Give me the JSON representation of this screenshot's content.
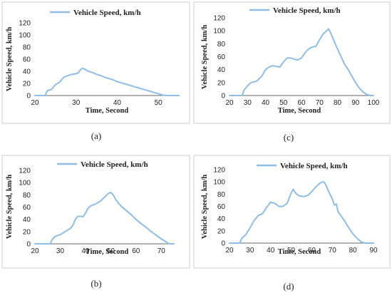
{
  "chart_data": [
    {
      "panel": "(a)",
      "type": "line",
      "legend": "Vehicle Speed, km/h",
      "legend_position": "top-center",
      "xlabel": "Time, Second",
      "ylabel": "Vehicle Speed, km/h",
      "xlim": [
        20,
        55
      ],
      "ylim": [
        0,
        120
      ],
      "xticks": [
        20,
        30,
        40,
        50
      ],
      "yticks": [
        0,
        20,
        40,
        60,
        80,
        100,
        120
      ],
      "grid": false,
      "series": [
        {
          "name": "Vehicle Speed, km/h",
          "color": "#8fbde6",
          "x": [
            20,
            22.5,
            23,
            24,
            24.5,
            25,
            26,
            27,
            28,
            29,
            30,
            30.5,
            31,
            31.5,
            32,
            33,
            34,
            35,
            36,
            37,
            38,
            39,
            40,
            41,
            42,
            43,
            44,
            45,
            46,
            47,
            48,
            49,
            50,
            51,
            52,
            53,
            55
          ],
          "y": [
            0,
            0,
            8,
            10,
            14,
            18,
            22,
            30,
            33,
            35,
            36,
            37,
            42,
            45,
            44,
            40,
            38,
            35,
            33,
            30,
            28,
            26,
            23,
            21,
            19,
            17,
            15,
            13,
            11,
            9,
            7,
            5,
            3,
            1,
            0,
            0,
            0
          ]
        }
      ]
    },
    {
      "panel": "(c)",
      "type": "line",
      "legend": "Vehicle Speed, km/h",
      "legend_position": "top-center",
      "xlabel": "Time, Second",
      "ylabel": "Vehicle Speed, km/h",
      "xlim": [
        20,
        100
      ],
      "ylim": [
        0,
        120
      ],
      "xticks": [
        20,
        30,
        40,
        50,
        60,
        70,
        80,
        90,
        100
      ],
      "yticks": [
        0,
        20,
        40,
        60,
        80,
        100,
        120
      ],
      "grid": false,
      "series": [
        {
          "name": "Vehicle Speed, km/h",
          "color": "#8fbde6",
          "x": [
            20,
            27,
            28,
            30,
            32,
            35,
            38,
            40,
            42,
            44,
            46,
            48,
            50,
            52,
            54,
            56,
            58,
            60,
            62,
            64,
            66,
            68,
            70,
            72,
            74,
            75,
            76,
            78,
            80,
            82,
            84,
            86,
            88,
            90,
            92,
            94,
            96,
            98,
            100
          ],
          "y": [
            0,
            0,
            8,
            15,
            20,
            22,
            30,
            40,
            44,
            46,
            45,
            44,
            52,
            58,
            58,
            56,
            55,
            58,
            66,
            72,
            75,
            76,
            86,
            95,
            100,
            103,
            98,
            85,
            72,
            60,
            48,
            40,
            30,
            20,
            12,
            6,
            2,
            0,
            0
          ]
        }
      ]
    },
    {
      "panel": "(b)",
      "type": "line",
      "legend": "Vehicle Speed, km/h",
      "legend_position": "top-center",
      "xlabel": "Time, Second",
      "ylabel": "Vehicle Speed, km/h",
      "xlim": [
        20,
        75
      ],
      "ylim": [
        0,
        120
      ],
      "xticks": [
        20,
        30,
        40,
        50,
        60,
        70
      ],
      "yticks": [
        0,
        20,
        40,
        60,
        80,
        100,
        120
      ],
      "grid": false,
      "series": [
        {
          "name": "Vehicle Speed, km/h",
          "color": "#8fbde6",
          "x": [
            20,
            26,
            27,
            28,
            30,
            32,
            34,
            35,
            36,
            37,
            38,
            39,
            40,
            41,
            42,
            44,
            46,
            47,
            48,
            49,
            50,
            51,
            52,
            54,
            56,
            58,
            60,
            62,
            64,
            66,
            68,
            70,
            72,
            73,
            74,
            75
          ],
          "y": [
            0,
            0,
            8,
            12,
            15,
            20,
            25,
            30,
            40,
            45,
            45,
            44,
            50,
            58,
            62,
            65,
            70,
            74,
            78,
            82,
            84,
            80,
            72,
            62,
            55,
            48,
            40,
            33,
            27,
            20,
            14,
            8,
            3,
            0,
            0,
            0
          ]
        }
      ]
    },
    {
      "panel": "(d)",
      "type": "line",
      "legend": "Vehicle Speed, km/h",
      "legend_position": "top-center",
      "xlabel": "Time, Second",
      "ylabel": "Vehicle Speed, km/h",
      "xlim": [
        20,
        90
      ],
      "ylim": [
        0,
        120
      ],
      "xticks": [
        20,
        30,
        40,
        50,
        60,
        70,
        80,
        90
      ],
      "yticks": [
        0,
        20,
        40,
        60,
        80,
        100,
        120
      ],
      "grid": false,
      "series": [
        {
          "name": "Vehicle Speed, km/h",
          "color": "#8fbde6",
          "x": [
            20,
            25,
            26,
            28,
            30,
            32,
            34,
            36,
            38,
            40,
            42,
            44,
            46,
            48,
            50,
            51,
            52,
            54,
            56,
            58,
            60,
            62,
            64,
            65,
            66,
            67,
            68,
            70,
            71,
            72,
            72.5,
            73,
            74,
            76,
            78,
            80,
            82,
            84,
            86,
            88,
            90
          ],
          "y": [
            0,
            0,
            8,
            14,
            25,
            37,
            45,
            48,
            58,
            67,
            65,
            60,
            60,
            65,
            82,
            88,
            82,
            77,
            76,
            78,
            84,
            92,
            98,
            100,
            100,
            94,
            86,
            72,
            62,
            64,
            55,
            50,
            46,
            36,
            25,
            15,
            8,
            2,
            0,
            0,
            0
          ]
        }
      ]
    }
  ]
}
